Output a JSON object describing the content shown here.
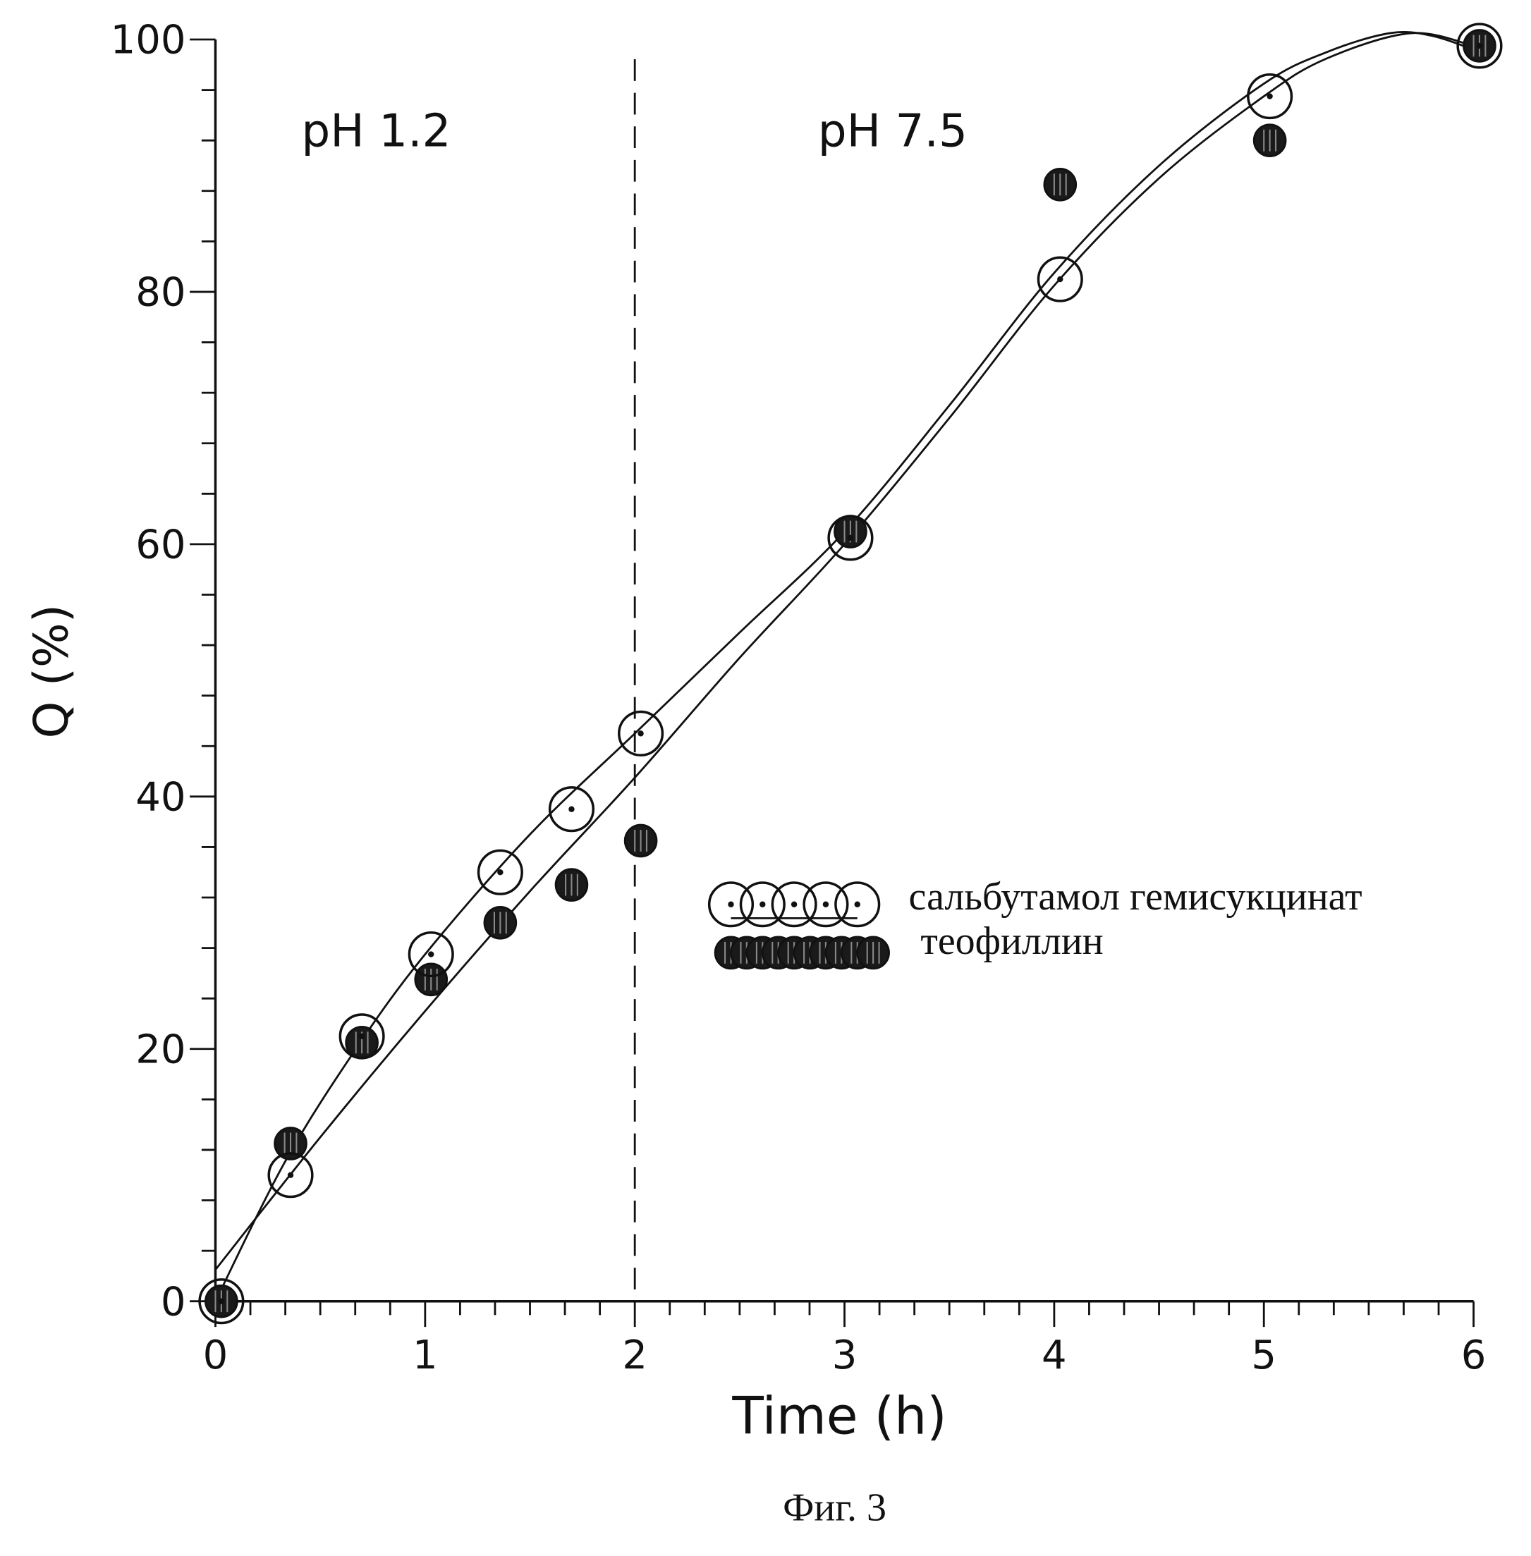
{
  "chart_data": {
    "type": "scatter",
    "title": "",
    "caption": "Фиг. 3",
    "xlabel": "Time  (h)",
    "ylabel": "Q  (%)",
    "xlim": [
      0,
      6
    ],
    "ylim": [
      0,
      100
    ],
    "xticks": [
      "0",
      "1",
      "2",
      "3",
      "4",
      "5",
      "6"
    ],
    "yticks": [
      "0",
      "20",
      "40",
      "60",
      "80",
      "100"
    ],
    "grid": false,
    "legend_placement": "center-right",
    "annotations": {
      "phase1": "pH  1.2",
      "phase2": "pH  7.5",
      "divider_x": 2
    },
    "series": [
      {
        "name": "сальбутамол гемисукцинат",
        "marker": "open-circle-dot",
        "x": [
          0,
          0.33,
          0.67,
          1,
          1.33,
          1.67,
          2,
          3,
          4,
          5,
          6
        ],
        "y": [
          0,
          10,
          21,
          27.5,
          34,
          39,
          45,
          60.5,
          81,
          95.5,
          99.5
        ],
        "fit_x": [
          0,
          0.33,
          0.67,
          1,
          1.5,
          2,
          2.5,
          3,
          3.5,
          4,
          4.5,
          5,
          5.3,
          5.6,
          5.8,
          6
        ],
        "fit_y": [
          0,
          11,
          20,
          27.5,
          37,
          45,
          53,
          61,
          71,
          81.5,
          90,
          96.5,
          99,
          100.5,
          100.3,
          99.2
        ]
      },
      {
        "name": "теофиллин",
        "marker": "filled-circle",
        "x": [
          0,
          0.33,
          0.67,
          1,
          1.33,
          1.67,
          2,
          3,
          4,
          5,
          6
        ],
        "y": [
          0,
          12.5,
          20.5,
          25.5,
          30,
          33,
          36.5,
          61,
          88.5,
          92,
          99.5
        ],
        "fit_x": [
          0,
          0.5,
          1,
          1.5,
          2,
          2.5,
          3,
          3.5,
          4,
          4.5,
          5,
          5.3,
          5.7,
          6
        ],
        "fit_y": [
          2.5,
          13,
          23,
          32.5,
          41.5,
          51,
          60,
          70,
          80.5,
          89,
          95.5,
          98.5,
          100.5,
          99.5
        ]
      }
    ]
  }
}
